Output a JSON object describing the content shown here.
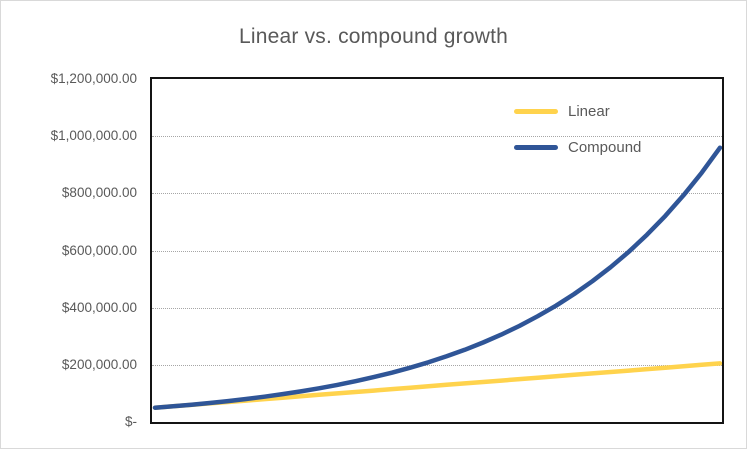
{
  "chart_data": {
    "type": "line",
    "title": "Linear vs. compound growth",
    "xlabel": "",
    "ylabel": "",
    "x_axis_labels_visible": false,
    "ylim": [
      0,
      1200000
    ],
    "grid": "horizontal-dotted",
    "legend_position": "inside-top-right",
    "x": [
      0,
      1,
      2,
      3,
      4,
      5,
      6,
      7,
      8,
      9,
      10,
      11,
      12,
      13,
      14,
      15,
      16,
      17,
      18,
      19,
      20,
      21,
      22,
      23,
      24,
      25,
      26,
      27,
      28,
      29,
      30,
      31
    ],
    "series": [
      {
        "name": "Linear",
        "color": "#FFD34D",
        "values": [
          50000,
          55000,
          60000,
          65000,
          70000,
          75000,
          80000,
          85000,
          90000,
          95000,
          100000,
          105000,
          110000,
          115000,
          120000,
          125000,
          130000,
          135000,
          140000,
          145000,
          150000,
          155000,
          160000,
          165000,
          170000,
          175000,
          180000,
          185000,
          190000,
          195000,
          200000,
          205000
        ]
      },
      {
        "name": "Compound",
        "color": "#2F5597",
        "values": [
          50000,
          55000,
          60500,
          66550,
          73205,
          80526,
          88578,
          97436,
          107179,
          117897,
          129687,
          142656,
          156921,
          172614,
          189875,
          208862,
          229749,
          252724,
          277996,
          305795,
          336375,
          370012,
          407014,
          447715,
          492487,
          541735,
          595909,
          655500,
          721050,
          793155,
          872470,
          959717
        ]
      }
    ],
    "y_ticks": [
      {
        "value": 0,
        "label": "$-"
      },
      {
        "value": 200000,
        "label": "$200,000.00"
      },
      {
        "value": 400000,
        "label": "$400,000.00"
      },
      {
        "value": 600000,
        "label": "$600,000.00"
      },
      {
        "value": 800000,
        "label": "$800,000.00"
      },
      {
        "value": 1000000,
        "label": "$1,000,000.00"
      },
      {
        "value": 1200000,
        "label": "$1,200,000.00"
      }
    ]
  },
  "styles": {
    "background": "#FFFFFF",
    "frame_border": "#D9D9D9",
    "plot_border": "#141414",
    "gridline_color": "#A6A6A6",
    "text_color": "#595959",
    "linear_color": "#FFD34D",
    "compound_color": "#2F5597"
  }
}
